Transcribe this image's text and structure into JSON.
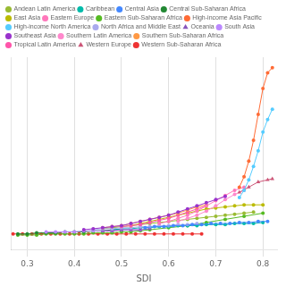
{
  "chart_data": {
    "type": "line",
    "xlabel": "SDI",
    "xlim": [
      0.265,
      0.83
    ],
    "xticks": [
      0.3,
      0.4,
      0.5,
      0.6,
      0.7,
      0.8
    ],
    "ylim": [
      -0.05,
      1.8
    ],
    "grid": true,
    "tick_labels": "x",
    "legend": "upper left",
    "series": [
      {
        "name": "High-income Asia Pacific",
        "color": "#FF6B35",
        "marker": "circle",
        "x": [
          0.75,
          0.76,
          0.77,
          0.78,
          0.79,
          0.8,
          0.81,
          0.82
        ],
        "values": [
          0.55,
          0.65,
          0.8,
          1.0,
          1.25,
          1.5,
          1.65,
          1.7
        ]
      },
      {
        "name": "High-income North America",
        "color": "#55CCFF",
        "marker": "circle",
        "x": [
          0.75,
          0.76,
          0.77,
          0.78,
          0.79,
          0.8,
          0.81,
          0.82
        ],
        "values": [
          0.45,
          0.52,
          0.62,
          0.75,
          0.9,
          1.08,
          1.2,
          1.3
        ]
      },
      {
        "name": "Western Europe",
        "color": "#CC5577",
        "marker": "triangle",
        "x": [
          0.75,
          0.77,
          0.79,
          0.81,
          0.82
        ],
        "values": [
          0.5,
          0.55,
          0.6,
          0.62,
          0.63
        ]
      },
      {
        "name": "Southeast Asia",
        "color": "#9933CC",
        "marker": "circle",
        "x": [
          0.42,
          0.44,
          0.46,
          0.48,
          0.5,
          0.52,
          0.54,
          0.56,
          0.58,
          0.6,
          0.62,
          0.64,
          0.66,
          0.68,
          0.7,
          0.72
        ],
        "values": [
          0.14,
          0.15,
          0.16,
          0.17,
          0.18,
          0.2,
          0.22,
          0.24,
          0.26,
          0.28,
          0.31,
          0.34,
          0.37,
          0.4,
          0.43,
          0.46
        ]
      },
      {
        "name": "Eastern Europe",
        "color": "#FF77BB",
        "marker": "circle",
        "x": [
          0.58,
          0.6,
          0.62,
          0.64,
          0.66,
          0.68,
          0.7,
          0.72,
          0.74,
          0.76
        ],
        "values": [
          0.2,
          0.22,
          0.25,
          0.28,
          0.32,
          0.37,
          0.42,
          0.47,
          0.52,
          0.55
        ]
      },
      {
        "name": "Southern Latin America",
        "color": "#FF88CC",
        "marker": "circle",
        "x": [
          0.62,
          0.64,
          0.66,
          0.68,
          0.7,
          0.72,
          0.74,
          0.76
        ],
        "values": [
          0.22,
          0.25,
          0.28,
          0.32,
          0.37,
          0.43,
          0.48,
          0.52
        ]
      },
      {
        "name": "Southern Sub-Saharan Africa",
        "color": "#FF9944",
        "marker": "circle",
        "x": [
          0.46,
          0.48,
          0.5,
          0.52,
          0.54,
          0.56,
          0.58,
          0.6,
          0.62,
          0.64,
          0.66,
          0.68
        ],
        "values": [
          0.16,
          0.17,
          0.18,
          0.2,
          0.22,
          0.24,
          0.26,
          0.28,
          0.3,
          0.33,
          0.36,
          0.38
        ]
      },
      {
        "name": "Tropical Latin America",
        "color": "#FF55AA",
        "marker": "circle",
        "x": [
          0.5,
          0.52,
          0.54,
          0.56,
          0.58,
          0.6,
          0.62,
          0.64,
          0.66,
          0.68
        ],
        "values": [
          0.17,
          0.18,
          0.19,
          0.21,
          0.23,
          0.25,
          0.28,
          0.31,
          0.34,
          0.37
        ]
      },
      {
        "name": "East Asia",
        "color": "#BBBB00",
        "marker": "circle",
        "x": [
          0.52,
          0.54,
          0.56,
          0.58,
          0.6,
          0.62,
          0.64,
          0.66,
          0.68,
          0.7,
          0.72,
          0.74,
          0.76,
          0.78,
          0.8
        ],
        "values": [
          0.18,
          0.2,
          0.22,
          0.24,
          0.26,
          0.28,
          0.3,
          0.32,
          0.34,
          0.35,
          0.36,
          0.37,
          0.38,
          0.38,
          0.38
        ]
      },
      {
        "name": "Central Asia",
        "color": "#4488FF",
        "marker": "circle",
        "x": [
          0.55,
          0.57,
          0.59,
          0.61,
          0.63,
          0.65,
          0.67,
          0.69,
          0.71,
          0.73,
          0.75,
          0.77,
          0.79,
          0.81
        ],
        "values": [
          0.16,
          0.17,
          0.17,
          0.18,
          0.18,
          0.19,
          0.19,
          0.2,
          0.2,
          0.2,
          0.21,
          0.21,
          0.22,
          0.22
        ]
      },
      {
        "name": "North Africa and Middle East",
        "color": "#AAAAEE",
        "marker": "circle",
        "x": [
          0.44,
          0.46,
          0.48,
          0.5,
          0.52,
          0.54,
          0.56,
          0.58,
          0.6,
          0.62,
          0.64,
          0.66
        ],
        "values": [
          0.14,
          0.15,
          0.15,
          0.16,
          0.16,
          0.17,
          0.17,
          0.18,
          0.18,
          0.19,
          0.19,
          0.2
        ]
      },
      {
        "name": "Oceania",
        "color": "#8855BB",
        "marker": "triangle",
        "x": [
          0.46,
          0.48,
          0.5,
          0.52,
          0.54,
          0.56
        ],
        "values": [
          0.13,
          0.13,
          0.14,
          0.14,
          0.14,
          0.15
        ]
      },
      {
        "name": "South Asia",
        "color": "#BB88FF",
        "marker": "circle",
        "x": [
          0.34,
          0.36,
          0.38,
          0.4,
          0.42,
          0.44,
          0.46,
          0.48,
          0.5,
          0.52,
          0.54
        ],
        "values": [
          0.12,
          0.12,
          0.12,
          0.12,
          0.13,
          0.13,
          0.13,
          0.13,
          0.14,
          0.14,
          0.14
        ]
      },
      {
        "name": "Andean Latin America",
        "color": "#99BB33",
        "marker": "circle",
        "x": [
          0.46,
          0.48,
          0.5,
          0.52,
          0.54,
          0.56,
          0.58,
          0.6,
          0.62,
          0.64,
          0.66,
          0.68,
          0.7,
          0.72,
          0.74,
          0.76,
          0.78
        ],
        "values": [
          0.15,
          0.16,
          0.17,
          0.18,
          0.19,
          0.2,
          0.21,
          0.22,
          0.23,
          0.24,
          0.25,
          0.26,
          0.27,
          0.28,
          0.29,
          0.3,
          0.31
        ]
      },
      {
        "name": "Caribbean",
        "color": "#00BBAA",
        "marker": "circle",
        "x": [
          0.48,
          0.5,
          0.52,
          0.54,
          0.56,
          0.58,
          0.6,
          0.62,
          0.64,
          0.66,
          0.68,
          0.7,
          0.72,
          0.74,
          0.76,
          0.78,
          0.8
        ],
        "values": [
          0.14,
          0.15,
          0.15,
          0.16,
          0.16,
          0.17,
          0.17,
          0.18,
          0.18,
          0.18,
          0.19,
          0.19,
          0.19,
          0.2,
          0.2,
          0.2,
          0.21
        ]
      },
      {
        "name": "Central Sub-Saharan Africa",
        "color": "#228833",
        "marker": "circle",
        "x": [
          0.28,
          0.3,
          0.32,
          0.34,
          0.36,
          0.38,
          0.4,
          0.42,
          0.44,
          0.46,
          0.48,
          0.5
        ],
        "values": [
          0.1,
          0.1,
          0.11,
          0.11,
          0.11,
          0.12,
          0.12,
          0.12,
          0.13,
          0.13,
          0.14,
          0.14
        ]
      },
      {
        "name": "Eastern Sub-Saharan Africa",
        "color": "#55BB22",
        "marker": "circle",
        "x": [
          0.28,
          0.3,
          0.32,
          0.34,
          0.36,
          0.38,
          0.4,
          0.42,
          0.44,
          0.46,
          0.48,
          0.5,
          0.52,
          0.54,
          0.56,
          0.6,
          0.64,
          0.68,
          0.72,
          0.76,
          0.8
        ],
        "values": [
          0.09,
          0.09,
          0.09,
          0.1,
          0.1,
          0.1,
          0.1,
          0.1,
          0.11,
          0.11,
          0.11,
          0.12,
          0.12,
          0.13,
          0.14,
          0.16,
          0.18,
          0.21,
          0.24,
          0.27,
          0.3
        ]
      },
      {
        "name": "Western Sub-Saharan Africa",
        "color": "#EE3333",
        "marker": "circle",
        "x": [
          0.27,
          0.29,
          0.31,
          0.33,
          0.35,
          0.37,
          0.39,
          0.41,
          0.43,
          0.45,
          0.47,
          0.49,
          0.51,
          0.53,
          0.55,
          0.57,
          0.59,
          0.61,
          0.63,
          0.65,
          0.67
        ],
        "values": [
          0.1,
          0.1,
          0.1,
          0.1,
          0.1,
          0.1,
          0.1,
          0.1,
          0.1,
          0.1,
          0.1,
          0.1,
          0.1,
          0.1,
          0.1,
          0.1,
          0.1,
          0.1,
          0.1,
          0.1,
          0.1
        ]
      }
    ]
  }
}
